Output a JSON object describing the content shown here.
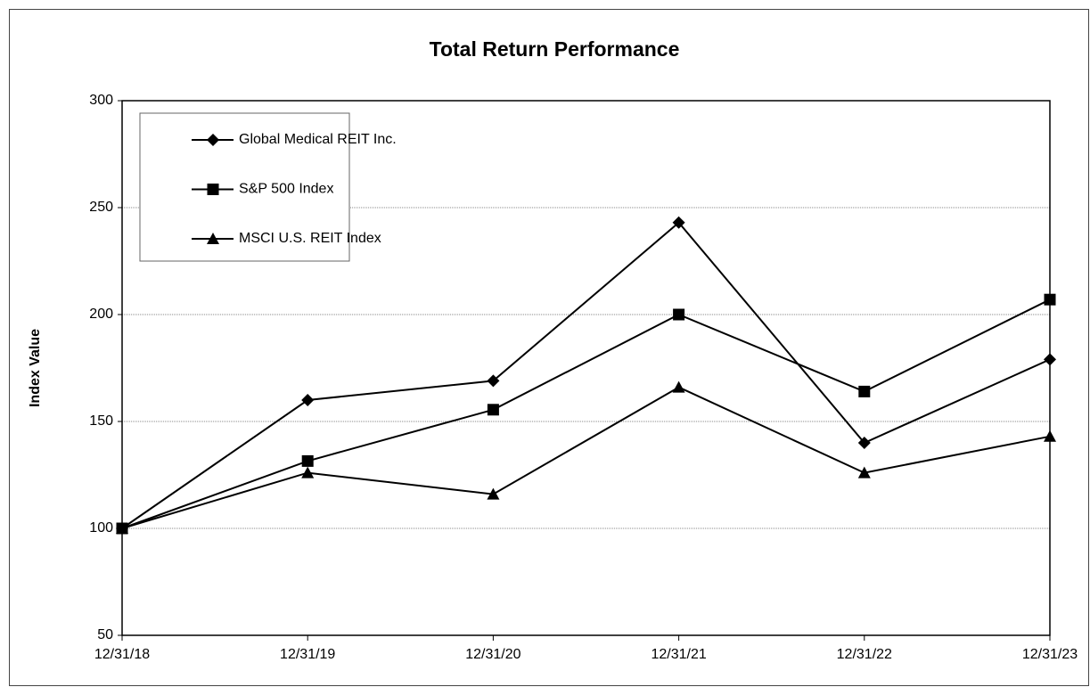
{
  "chart_data": {
    "type": "line",
    "title": "Total Return Performance",
    "y_label": "Index Value",
    "categories": [
      "12/31/18",
      "12/31/19",
      "12/31/20",
      "12/31/21",
      "12/31/22",
      "12/31/23"
    ],
    "series": [
      {
        "name": "Global Medical REIT Inc.",
        "color": "#000000",
        "marker": "diamond",
        "values": [
          100,
          160,
          169,
          243,
          140,
          179
        ]
      },
      {
        "name": "S&P 500 Index",
        "color": "#000000",
        "marker": "square",
        "values": [
          100,
          131.5,
          155.5,
          200,
          164,
          207
        ]
      },
      {
        "name": "MSCI U.S. REIT Index",
        "color": "#000000",
        "marker": "triangle",
        "values": [
          100,
          126,
          116,
          166,
          126,
          143
        ]
      }
    ],
    "ylim": [
      50,
      300
    ],
    "yticks": [
      50,
      100,
      150,
      200,
      250,
      300
    ],
    "grid": true,
    "legend": "upper left"
  }
}
